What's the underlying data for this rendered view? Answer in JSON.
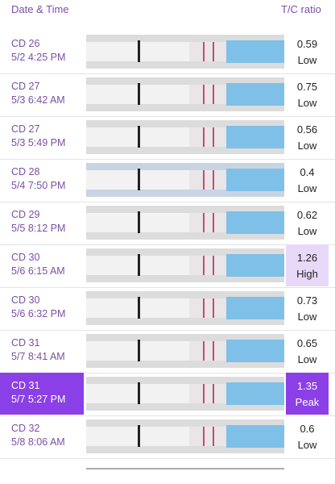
{
  "header": {
    "date_time": "Date & Time",
    "ratio": "T/C ratio"
  },
  "rows": [
    {
      "cycle_day": "CD 26",
      "datetime": "5/2 4:25 PM",
      "ratio": 0.59,
      "level": "Low"
    },
    {
      "cycle_day": "CD 27",
      "datetime": "5/3 6:42 AM",
      "ratio": 0.75,
      "level": "Low"
    },
    {
      "cycle_day": "CD 27",
      "datetime": "5/3 5:49 PM",
      "ratio": 0.56,
      "level": "Low"
    },
    {
      "cycle_day": "CD 28",
      "datetime": "5/4 7:50 PM",
      "ratio": 0.4,
      "level": "Low"
    },
    {
      "cycle_day": "CD 29",
      "datetime": "5/5 8:12 PM",
      "ratio": 0.62,
      "level": "Low"
    },
    {
      "cycle_day": "CD 30",
      "datetime": "5/6 6:15 AM",
      "ratio": 1.26,
      "level": "High"
    },
    {
      "cycle_day": "CD 30",
      "datetime": "5/6 6:32 PM",
      "ratio": 0.73,
      "level": "Low"
    },
    {
      "cycle_day": "CD 31",
      "datetime": "5/7 8:41 AM",
      "ratio": 0.65,
      "level": "Low"
    },
    {
      "cycle_day": "CD 31",
      "datetime": "5/7 5:27 PM",
      "ratio": 1.35,
      "level": "Peak"
    },
    {
      "cycle_day": "CD 32",
      "datetime": "5/8 8:06 AM",
      "ratio": 0.6,
      "level": "Low"
    }
  ]
}
